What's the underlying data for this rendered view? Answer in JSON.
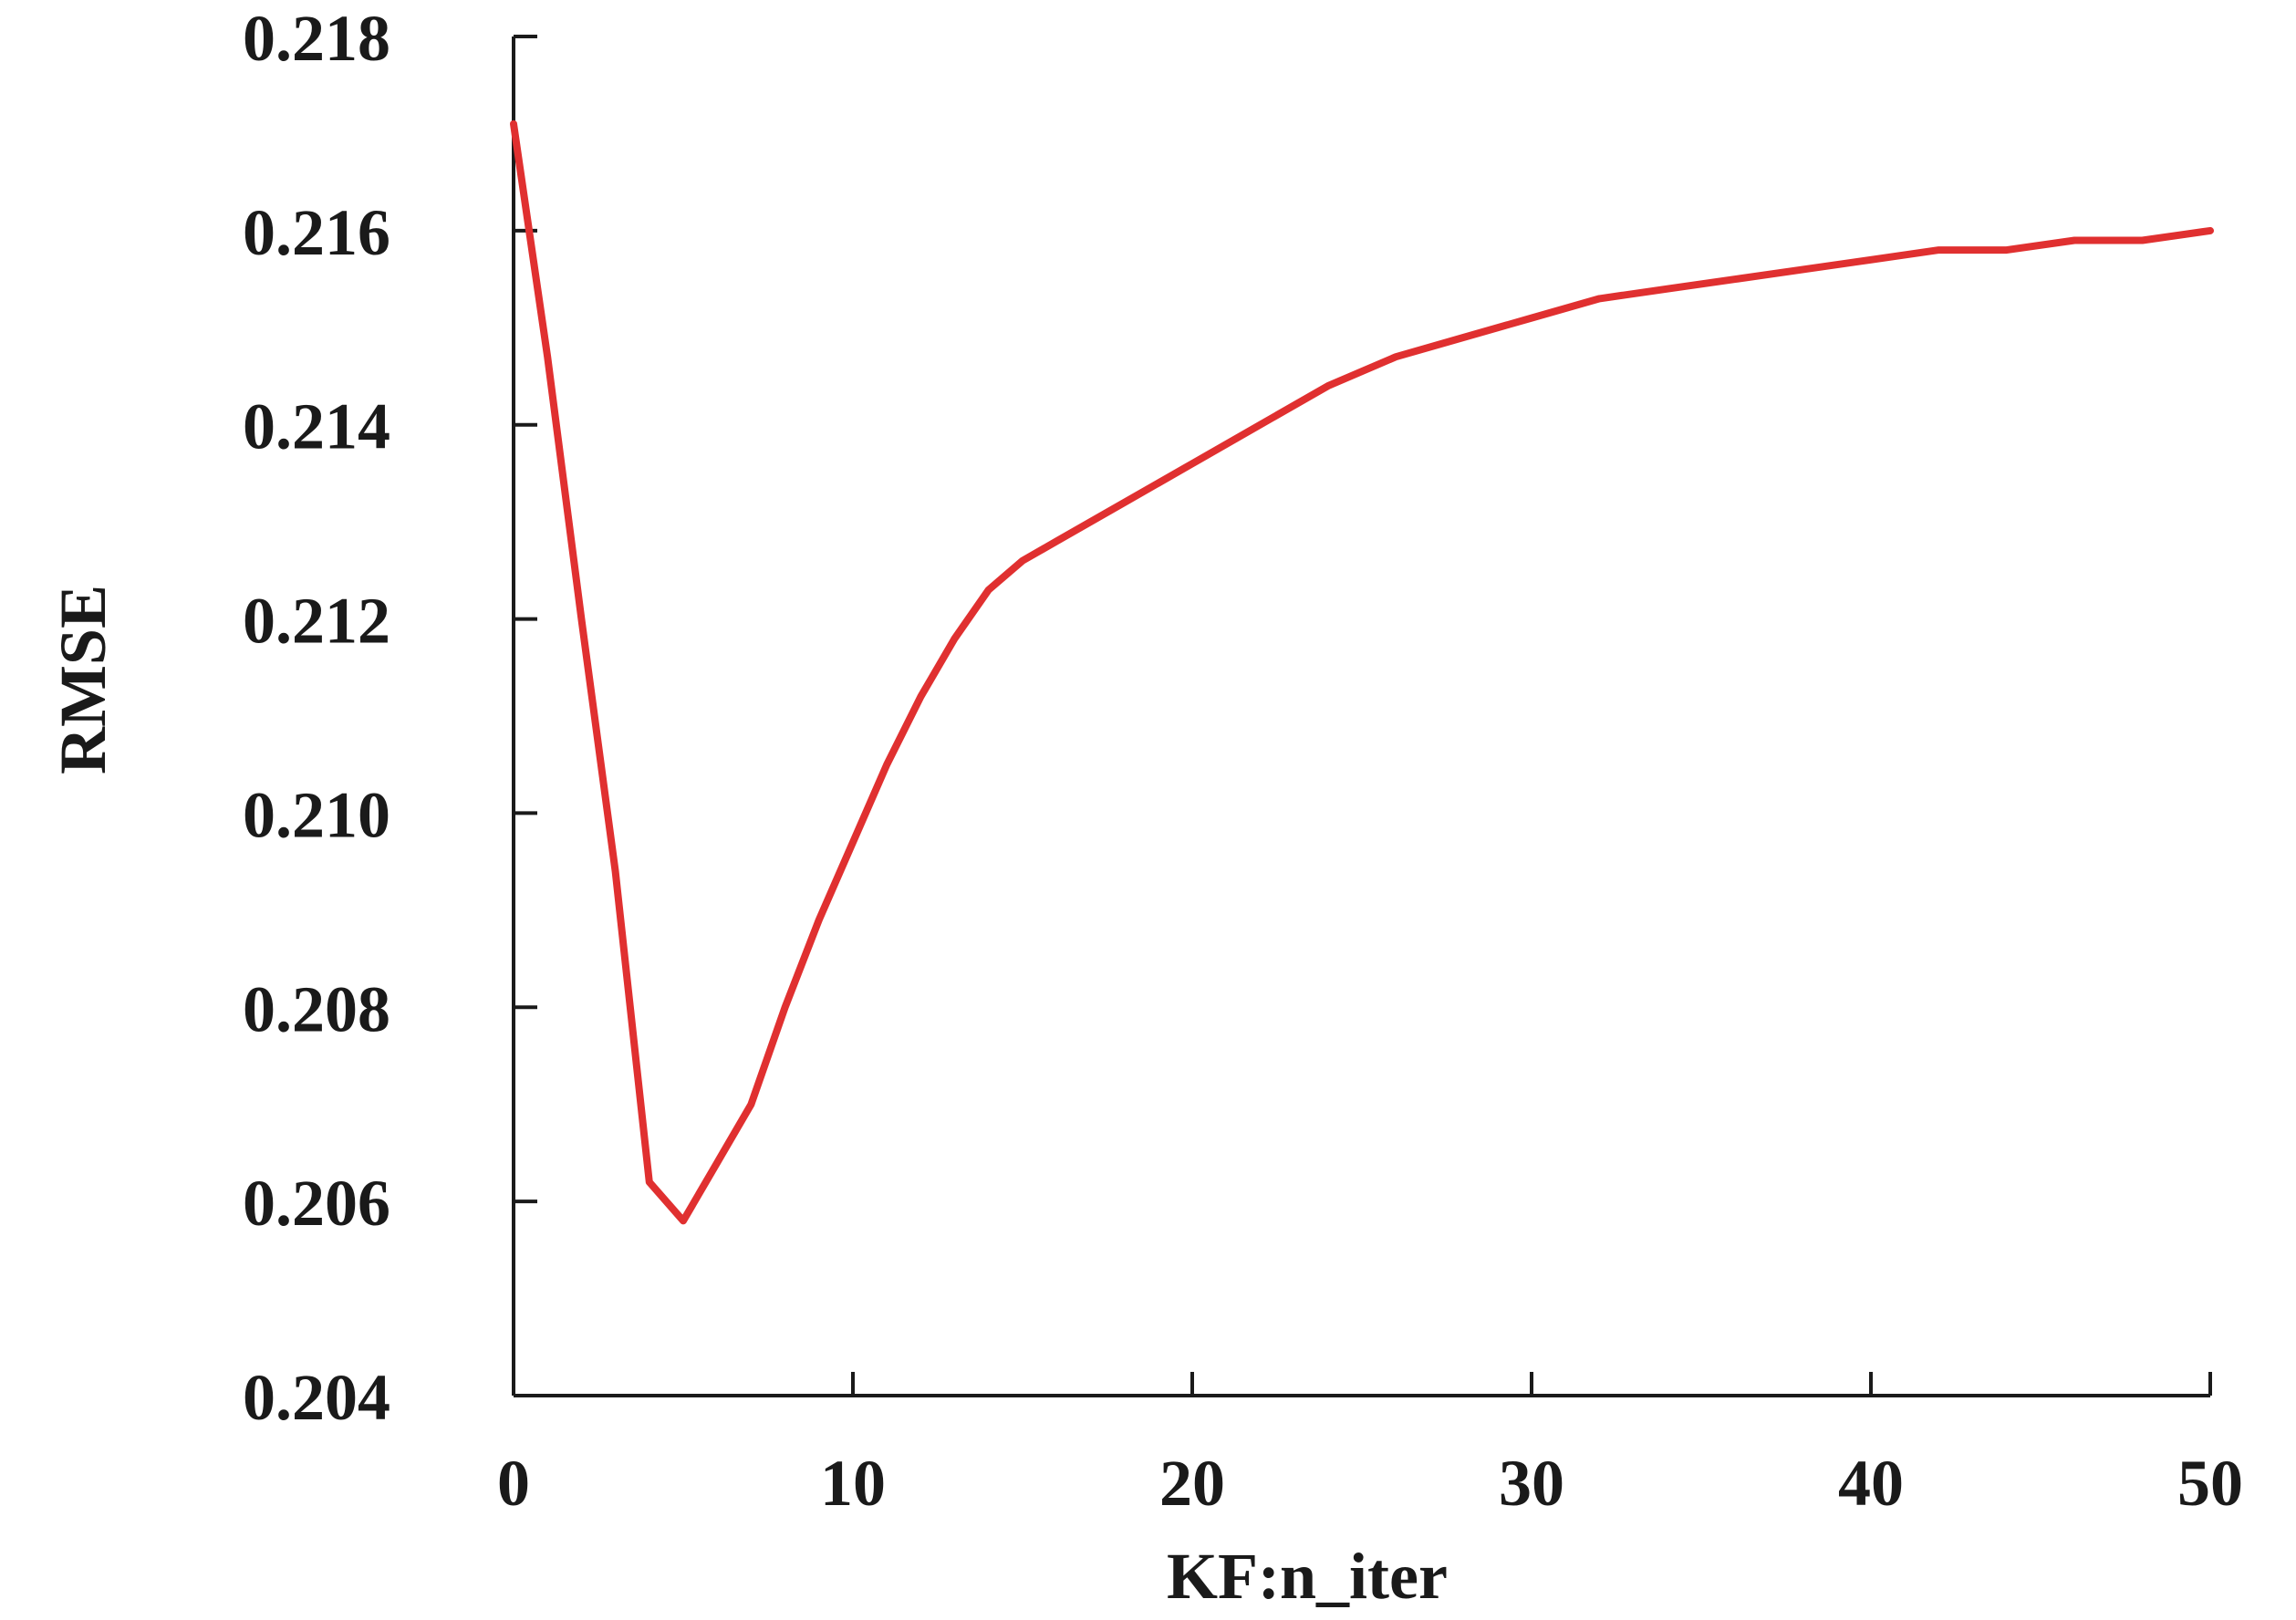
{
  "chart_data": {
    "type": "line",
    "title": "",
    "xlabel": "KF:n_iter",
    "ylabel": "RMSE",
    "xlim": [
      0,
      50
    ],
    "ylim": [
      0.204,
      0.218
    ],
    "x_ticks": [
      0,
      10,
      20,
      30,
      40,
      50
    ],
    "x_tick_labels": [
      "0",
      "10",
      "20",
      "30",
      "40",
      "50"
    ],
    "y_ticks": [
      0.204,
      0.206,
      0.208,
      0.21,
      0.212,
      0.214,
      0.216,
      0.218
    ],
    "y_tick_labels": [
      "0.204",
      "0.206",
      "0.208",
      "0.210",
      "0.212",
      "0.214",
      "0.216",
      "0.218"
    ],
    "grid": false,
    "legend": "none",
    "series": [
      {
        "color": "#e03030",
        "x": [
          0,
          1,
          2,
          3,
          4,
          5,
          6,
          7,
          8,
          9,
          10,
          11,
          12,
          13,
          14,
          15,
          16,
          17,
          18,
          19,
          20,
          22,
          24,
          26,
          28,
          30,
          32,
          34,
          36,
          38,
          40,
          42,
          44,
          46,
          48,
          50
        ],
        "y": [
          0.2171,
          0.2147,
          0.212,
          0.2094,
          0.2062,
          0.2058,
          0.2064,
          0.207,
          0.208,
          0.2089,
          0.2097,
          0.2105,
          0.2112,
          0.2118,
          0.2123,
          0.2126,
          0.2128,
          0.213,
          0.2132,
          0.2134,
          0.2136,
          0.214,
          0.2144,
          0.2147,
          0.2149,
          0.2151,
          0.2153,
          0.2154,
          0.2155,
          0.2156,
          0.2157,
          0.2158,
          0.2158,
          0.2159,
          0.2159,
          0.216
        ]
      }
    ]
  }
}
